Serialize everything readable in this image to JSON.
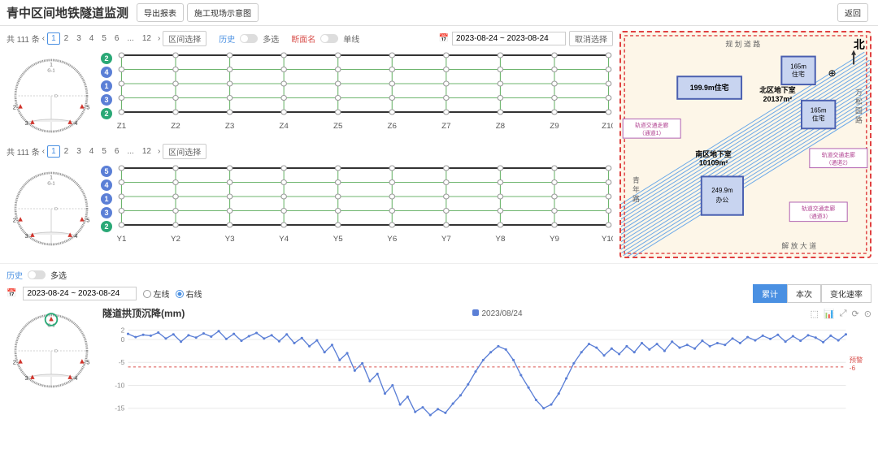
{
  "header": {
    "title": "青中区间地铁隧道监测",
    "export_btn": "导出报表",
    "sitemap_btn": "施工现场示意图",
    "back_btn": "返回"
  },
  "controls": {
    "total_prefix": "共",
    "total_count": 111,
    "total_suffix": "条",
    "pages": [
      "1",
      "2",
      "3",
      "4",
      "5",
      "6",
      "...",
      "12"
    ],
    "section_select": "区间选择",
    "toggle_history_label": "历史",
    "toggle_multi_label": "多选",
    "toggle_section_label": "断面名",
    "toggle_single_label": "单线",
    "date_value": "2023-08-24 ~ 2023-08-24",
    "cancel_select": "取消选择"
  },
  "tunnel_top": {
    "row_numbers": [
      2,
      4,
      1,
      3,
      2
    ],
    "row_colors": [
      "#2aa876",
      "#5b7fd6",
      "#5b7fd6",
      "#5b7fd6",
      "#2aa876"
    ],
    "columns": [
      "Z1",
      "Z2",
      "Z3",
      "Z4",
      "Z5",
      "Z6",
      "Z7",
      "Z8",
      "Z9",
      "Z10"
    ]
  },
  "tunnel_bottom": {
    "row_numbers": [
      5,
      4,
      1,
      3,
      2
    ],
    "row_colors": [
      "#5b7fd6",
      "#5b7fd6",
      "#5b7fd6",
      "#5b7fd6",
      "#2aa876"
    ],
    "columns": [
      "Y1",
      "Y2",
      "Y3",
      "Y4",
      "Y5",
      "Y6",
      "Y7",
      "Y8",
      "Y9",
      "Y10"
    ]
  },
  "circle": {
    "points": [
      {
        "label": "2",
        "angle": 200,
        "color": "#d0342c"
      },
      {
        "label": "3",
        "angle": 235,
        "color": "#d0342c"
      },
      {
        "label": "4",
        "angle": 305,
        "color": "#d0342c"
      },
      {
        "label": "5",
        "angle": 340,
        "color": "#d0342c"
      }
    ],
    "top_label_1": "1",
    "top_label_2": "G-1",
    "center_label": "O"
  },
  "sitemap": {
    "north_label": "北",
    "road_top": "规 划 道 路",
    "road_right": "万 松 园 路",
    "road_left": "青 年 路",
    "road_bottom": "解 放 大 道",
    "bldg_1999": "199.9m住宅",
    "bldg_165a": "165m\n住宅",
    "bldg_165b": "165m\n住宅",
    "basement_n": "北区地下室\n20137m²",
    "basement_s": "南区地下室\n10109m²",
    "bldg_2499": "249.9m\n办公",
    "tag1": "轨道交通走廊\n（通道1）",
    "tag2": "轨道交通走廊\n（通道2）",
    "tag3": "轨道交通走廊\n（通道3）",
    "compass": "⊕"
  },
  "chart": {
    "date_input": "2023-08-24 ~ 2023-08-24",
    "toggle_history": "历史",
    "toggle_multi": "多选",
    "radio_left": "左线",
    "radio_right": "右线",
    "tab_cumulative": "累计",
    "tab_current": "本次",
    "tab_rate": "变化速率",
    "title": "隧道拱顶沉降(mm)",
    "legend_date": "2023/08/24",
    "threshold_label": "预警",
    "threshold_value_label": "-6",
    "ylim": [
      -17,
      3
    ],
    "yticks": [
      2,
      0,
      -5,
      -10,
      -15
    ],
    "threshold": -6,
    "line_color": "#5b7fd6",
    "threshold_color": "#d9534f",
    "grid_color": "#e8e8e8",
    "data": [
      1.2,
      0.5,
      1.0,
      0.8,
      1.5,
      0.2,
      1.1,
      -0.5,
      0.9,
      0.4,
      1.3,
      0.6,
      1.8,
      0.1,
      1.2,
      -0.3,
      0.7,
      1.4,
      0.2,
      0.9,
      -0.4,
      1.1,
      -0.8,
      0.3,
      -1.5,
      -0.2,
      -2.8,
      -1.2,
      -4.5,
      -3.0,
      -6.8,
      -5.2,
      -9.1,
      -7.5,
      -11.8,
      -10.0,
      -14.2,
      -12.5,
      -15.8,
      -14.8,
      -16.5,
      -15.2,
      -16.0,
      -14.0,
      -12.2,
      -9.8,
      -7.0,
      -4.5,
      -2.8,
      -1.5,
      -2.2,
      -4.5,
      -7.8,
      -10.5,
      -13.2,
      -15.0,
      -14.2,
      -11.8,
      -8.5,
      -5.2,
      -2.8,
      -1.0,
      -1.8,
      -3.5,
      -2.0,
      -3.2,
      -1.5,
      -2.8,
      -0.8,
      -2.2,
      -1.0,
      -2.5,
      -0.5,
      -1.8,
      -1.2,
      -2.0,
      -0.3,
      -1.5,
      -0.8,
      -1.2,
      0.2,
      -0.8,
      0.5,
      -0.2,
      0.8,
      0.1,
      1.0,
      -0.5,
      0.7,
      -0.3,
      0.9,
      0.4,
      -0.6,
      0.8,
      -0.2,
      1.1
    ]
  }
}
